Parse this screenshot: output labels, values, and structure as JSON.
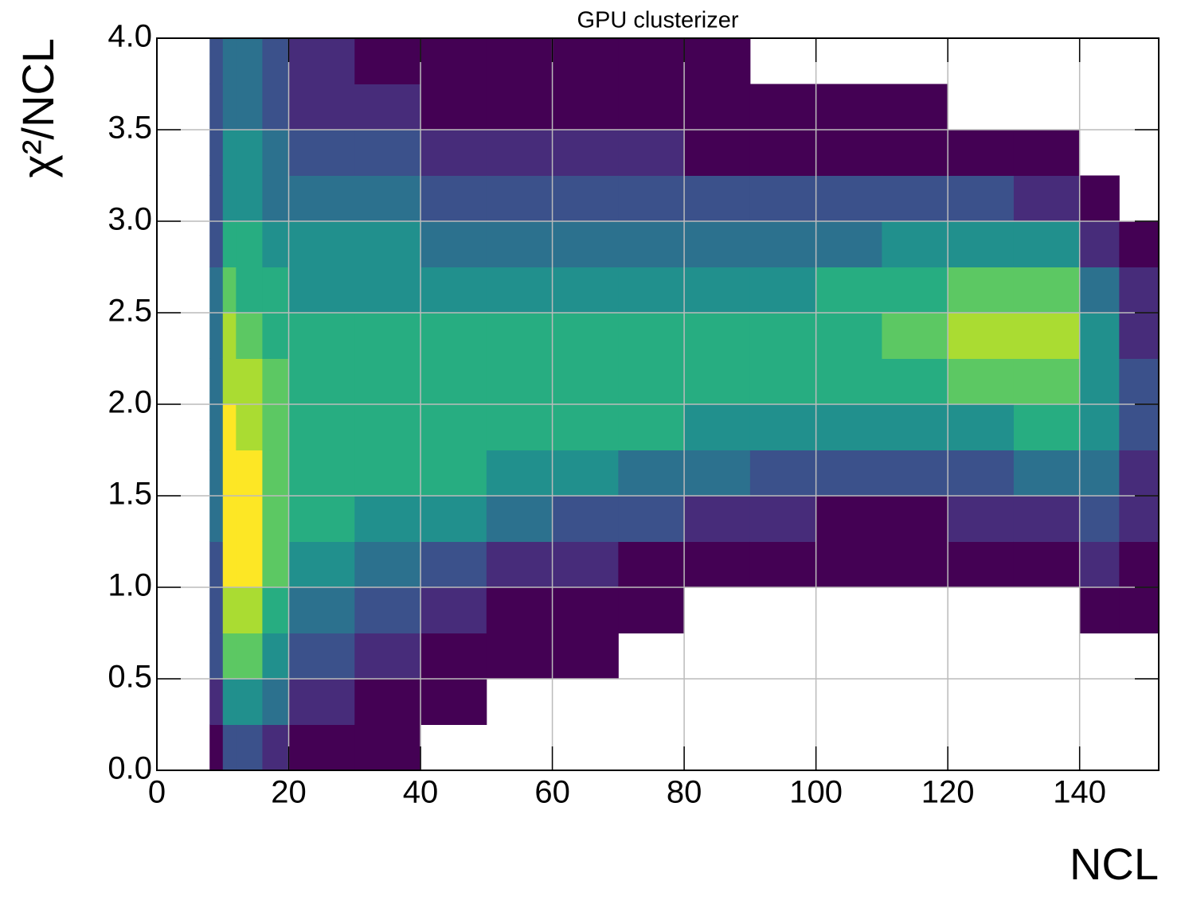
{
  "chart_data": {
    "type": "heatmap",
    "title": "GPU clusterizer",
    "x_label": "NCL",
    "y_label": "χ²/NCL",
    "xlim": [
      0,
      152
    ],
    "ylim": [
      0,
      4
    ],
    "xticks": [
      0,
      20,
      40,
      60,
      80,
      100,
      120,
      140
    ],
    "yticks": [
      {
        "value": 0,
        "label": "0.0"
      },
      0.5,
      {
        "value": 1,
        "label": "1.0"
      },
      1.5,
      {
        "value": 2,
        "label": "2.0"
      },
      2.5,
      {
        "value": 3,
        "label": "3.0"
      },
      3.5,
      {
        "value": 4,
        "label": "4.0"
      }
    ],
    "grid": true,
    "colormap": [
      "#440154",
      "#472c7a",
      "#3b518b",
      "#2c718e",
      "#21908d",
      "#27ad81",
      "#5cc863",
      "#aadc32",
      "#fde725"
    ],
    "xbins": [
      8,
      10,
      12,
      16,
      20,
      30,
      40,
      50,
      60,
      70,
      80,
      90,
      100,
      110,
      120,
      130,
      140,
      146,
      152
    ],
    "ybins": [
      0,
      0.25,
      0.5,
      0.75,
      1,
      1.25,
      1.5,
      1.75,
      2,
      2.25,
      2.5,
      2.75,
      3,
      3.25,
      3.5,
      3.75,
      4
    ],
    "z": [
      [
        1,
        2,
        3,
        3,
        3,
        4,
        4,
        4,
        4,
        4,
        4,
        3,
        3,
        3,
        3,
        3
      ],
      [
        3,
        5,
        7,
        8,
        9,
        9,
        9,
        9,
        8,
        8,
        7,
        6,
        5,
        5,
        4,
        4
      ],
      [
        3,
        5,
        7,
        8,
        9,
        9,
        9,
        8,
        8,
        7,
        6,
        6,
        5,
        5,
        4,
        4
      ],
      [
        2,
        4,
        5,
        6,
        7,
        7,
        7,
        7,
        7,
        6,
        6,
        5,
        4,
        4,
        3,
        3
      ],
      [
        1,
        2,
        3,
        4,
        5,
        6,
        6,
        6,
        6,
        6,
        5,
        5,
        4,
        3,
        2,
        2
      ],
      [
        1,
        1,
        2,
        3,
        4,
        5,
        6,
        6,
        6,
        6,
        5,
        5,
        4,
        3,
        2,
        1
      ],
      [
        0,
        1,
        1,
        2,
        3,
        5,
        6,
        6,
        6,
        6,
        5,
        4,
        3,
        2,
        1,
        1
      ],
      [
        0,
        0,
        1,
        1,
        2,
        4,
        5,
        6,
        6,
        6,
        5,
        4,
        3,
        2,
        1,
        1
      ],
      [
        0,
        0,
        1,
        1,
        2,
        3,
        5,
        6,
        6,
        6,
        5,
        4,
        3,
        2,
        1,
        1
      ],
      [
        0,
        0,
        0,
        1,
        1,
        3,
        4,
        6,
        6,
        6,
        5,
        4,
        3,
        2,
        1,
        1
      ],
      [
        0,
        0,
        0,
        0,
        1,
        2,
        4,
        5,
        6,
        6,
        5,
        4,
        3,
        1,
        1,
        1
      ],
      [
        0,
        0,
        0,
        0,
        1,
        2,
        3,
        5,
        6,
        6,
        5,
        4,
        3,
        1,
        1,
        0
      ],
      [
        0,
        0,
        0,
        0,
        1,
        1,
        3,
        5,
        6,
        6,
        6,
        4,
        3,
        1,
        1,
        0
      ],
      [
        0,
        0,
        0,
        0,
        1,
        1,
        3,
        5,
        6,
        7,
        6,
        5,
        3,
        1,
        1,
        0
      ],
      [
        0,
        0,
        0,
        0,
        1,
        2,
        3,
        5,
        7,
        8,
        7,
        5,
        3,
        1,
        0,
        0
      ],
      [
        0,
        0,
        0,
        0,
        1,
        2,
        4,
        6,
        7,
        8,
        7,
        5,
        2,
        1,
        0,
        0
      ],
      [
        0,
        0,
        0,
        1,
        2,
        3,
        4,
        5,
        5,
        5,
        4,
        2,
        1,
        0,
        0,
        0
      ],
      [
        0,
        0,
        0,
        1,
        1,
        2,
        2,
        3,
        3,
        2,
        2,
        1,
        0,
        0,
        0,
        0
      ]
    ]
  }
}
